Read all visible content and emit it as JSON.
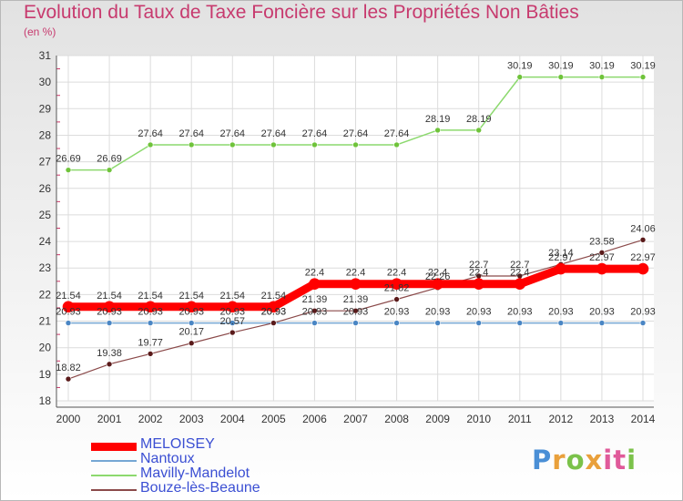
{
  "chart_data": {
    "type": "line",
    "title": "Evolution du Taux de Taxe Foncière sur les Propriétés Non Bâties",
    "ylabel": "(en %)",
    "xlabel": "",
    "x": [
      "2000",
      "2001",
      "2002",
      "2003",
      "2004",
      "2005",
      "2006",
      "2007",
      "2008",
      "2009",
      "2010",
      "2011",
      "2012",
      "2013",
      "2014"
    ],
    "ylim": [
      18,
      31
    ],
    "yticks": [
      "18",
      "19",
      "20",
      "21",
      "22",
      "23",
      "24",
      "25",
      "26",
      "27",
      "28",
      "29",
      "30",
      "31"
    ],
    "series": [
      {
        "name": "Mavilly-Mandelot",
        "color": "#8cd96e",
        "marker": "#6fc33a",
        "values": [
          26.69,
          26.69,
          27.64,
          27.64,
          27.64,
          27.64,
          27.64,
          27.64,
          27.64,
          28.19,
          28.19,
          30.19,
          30.19,
          30.19,
          30.19
        ],
        "labels": [
          "26.69",
          "26.69",
          "27.64",
          "27.64",
          "27.64",
          "27.64",
          "27.64",
          "27.64",
          "27.64",
          "28.19",
          "28.19",
          "30.19",
          "30.19",
          "30.19",
          "30.19"
        ]
      },
      {
        "name": "Nantoux",
        "color": "#75a7d4",
        "marker": "#4a86c4",
        "values": [
          20.93,
          20.93,
          20.93,
          20.93,
          20.93,
          20.93,
          20.93,
          20.93,
          20.93,
          20.93,
          20.93,
          20.93,
          20.93,
          20.93,
          20.93
        ],
        "labels": [
          "20.93",
          "20.93",
          "20.93",
          "20.93",
          "20.93",
          "20.93",
          "20.93",
          "20.93",
          "20.93",
          "20.93",
          "20.93",
          "20.93",
          "20.93",
          "20.93",
          "20.93"
        ]
      },
      {
        "name": "Bouze-lès-Beaune",
        "color": "#8b4a4a",
        "marker": "#5a1a1a",
        "values": [
          18.82,
          19.38,
          19.77,
          20.17,
          20.57,
          20.93,
          21.39,
          21.39,
          21.82,
          22.26,
          22.7,
          22.7,
          23.14,
          23.58,
          24.06
        ],
        "labels": [
          "18.82",
          "19.38",
          "19.77",
          "20.17",
          "20.57",
          "20.93",
          "21.39",
          "21.39",
          "21.82",
          "22.26",
          "22.7",
          "22.7",
          "23.14",
          "23.58",
          "24.06"
        ]
      },
      {
        "name": "MELOISEY",
        "color": "#ff0000",
        "marker": "#ff0000",
        "values": [
          21.54,
          21.54,
          21.54,
          21.54,
          21.54,
          21.54,
          22.4,
          22.4,
          22.4,
          22.4,
          22.4,
          22.4,
          22.97,
          22.97,
          22.97
        ],
        "labels": [
          "21.54",
          "21.54",
          "21.54",
          "21.54",
          "21.54",
          "21.54",
          "22.4",
          "22.4",
          "22.4",
          "22.4",
          "22.4",
          "22.4",
          "22.97",
          "22.97",
          "22.97"
        ]
      }
    ],
    "legend": [
      "MELOISEY",
      "Nantoux",
      "Mavilly-Mandelot",
      "Bouze-lès-Beaune"
    ],
    "legend_position": "bottom-left"
  },
  "logo": {
    "letters": [
      "P",
      "r",
      "o",
      "x",
      "i",
      "t",
      "i"
    ],
    "colors": [
      "#4a8fd6",
      "#e9a03b",
      "#7bc24a",
      "#e9a03b",
      "#e05a9a",
      "#e05a9a",
      "#7bc24a"
    ]
  }
}
